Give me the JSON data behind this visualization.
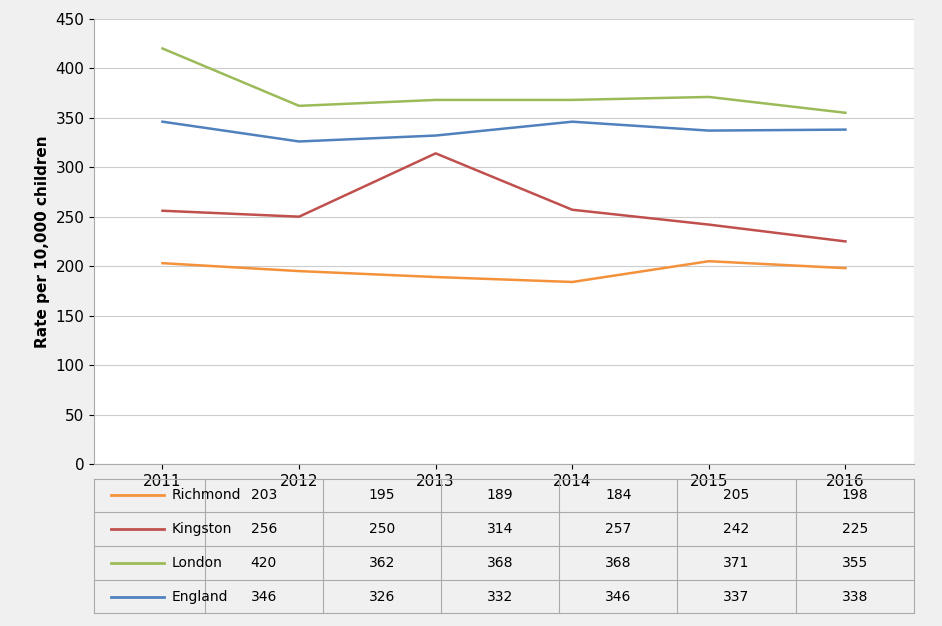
{
  "years": [
    2011,
    2012,
    2013,
    2014,
    2015,
    2016
  ],
  "series": {
    "Richmond": {
      "values": [
        203,
        195,
        189,
        184,
        205,
        198
      ],
      "color": "#f4913b"
    },
    "Kingston": {
      "values": [
        256,
        250,
        314,
        257,
        242,
        225
      ],
      "color": "#c0504d"
    },
    "London": {
      "values": [
        420,
        362,
        368,
        368,
        371,
        355
      ],
      "color": "#9bbb59"
    },
    "England": {
      "values": [
        346,
        326,
        332,
        346,
        337,
        338
      ],
      "color": "#4f81bd"
    }
  },
  "ylabel": "Rate per 10,000 children",
  "ylim": [
    0,
    450
  ],
  "yticks": [
    0,
    50,
    100,
    150,
    200,
    250,
    300,
    350,
    400,
    450
  ],
  "table_rows": [
    "Richmond",
    "Kingston",
    "London",
    "England"
  ],
  "background_color": "#f0f0f0",
  "plot_bg_color": "#ffffff"
}
